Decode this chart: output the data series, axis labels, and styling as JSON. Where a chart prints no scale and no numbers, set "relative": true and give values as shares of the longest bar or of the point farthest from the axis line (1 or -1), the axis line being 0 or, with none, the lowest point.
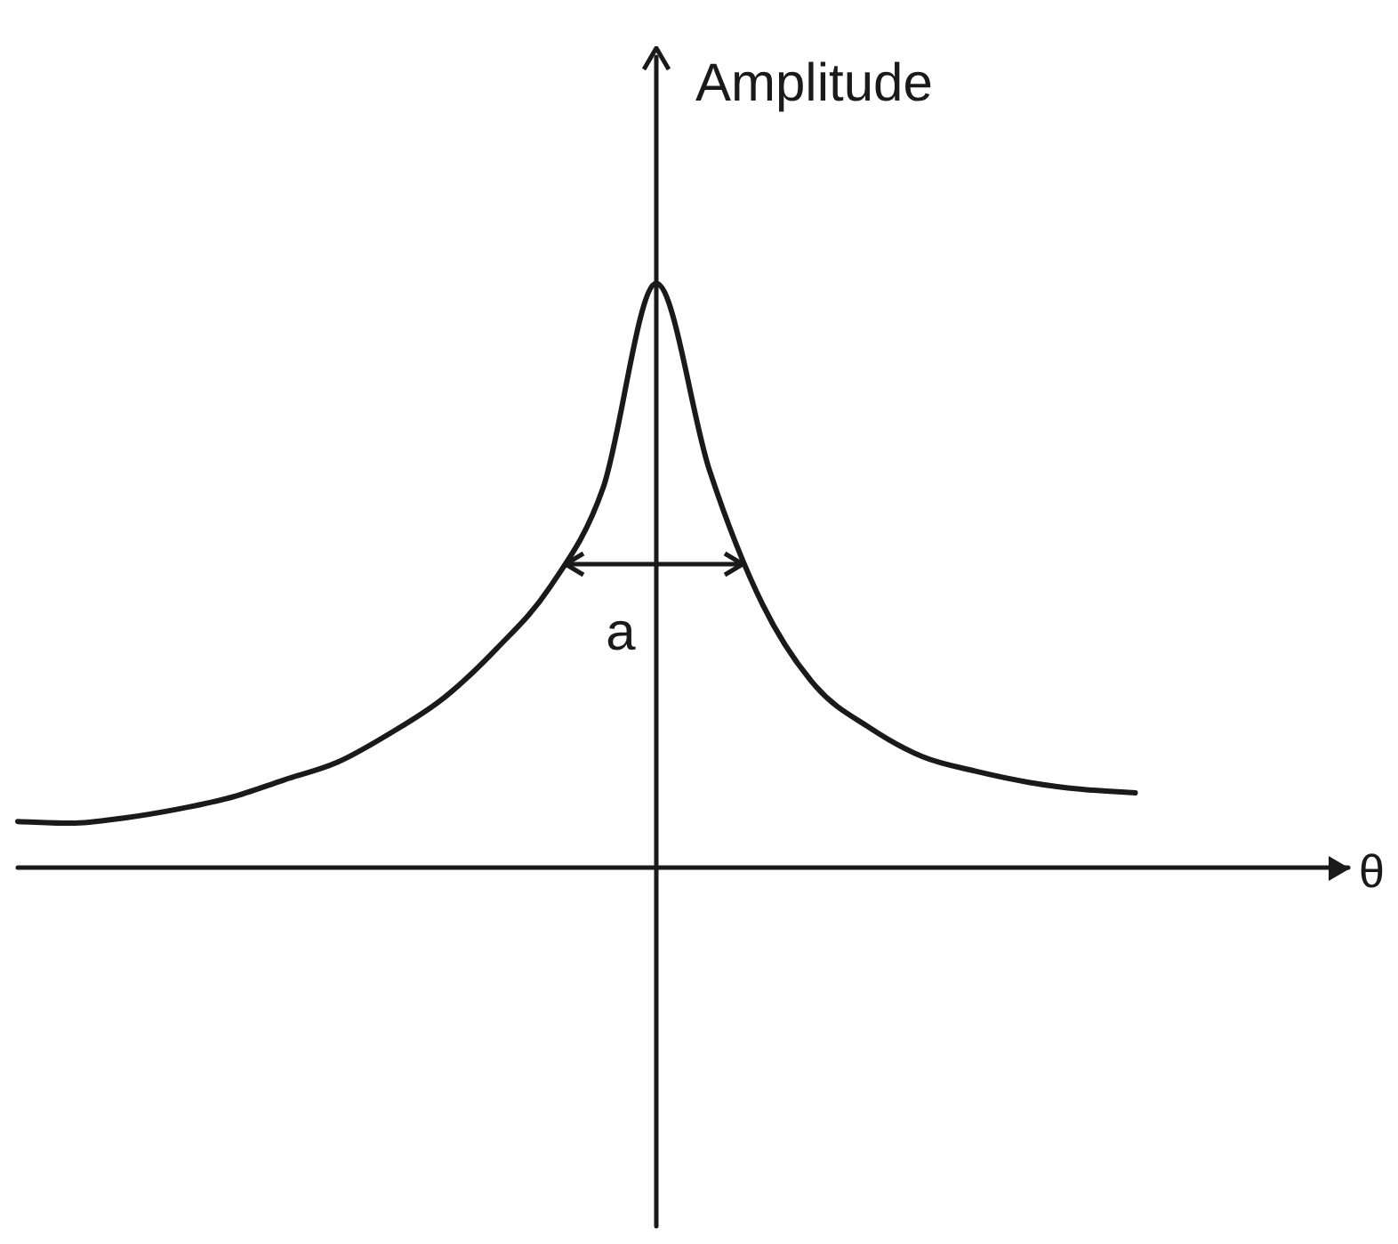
{
  "chart_data": {
    "type": "line",
    "xlabel": "θ",
    "ylabel": "Amplitude",
    "relative": true,
    "grid": false,
    "legend": false,
    "marker": "none",
    "categories": [
      null,
      null,
      null,
      null,
      null,
      null,
      null,
      null,
      null,
      null,
      null,
      null,
      null,
      null,
      null,
      null,
      null,
      null,
      null,
      null,
      null,
      null,
      null,
      null,
      null
    ],
    "series": [
      {
        "color": "#1a1a1a",
        "values": [
          0.079,
          0.076,
          0.085,
          0.1,
          0.12,
          0.15,
          0.18,
          0.23,
          0.29,
          0.375,
          0.48,
          0.65,
          1,
          0.68,
          0.45,
          0.31,
          0.24,
          0.19,
          0.165,
          0.146,
          0.134,
          0.128,
          null,
          null,
          null
        ]
      }
    ],
    "annotations": [
      "a"
    ]
  }
}
